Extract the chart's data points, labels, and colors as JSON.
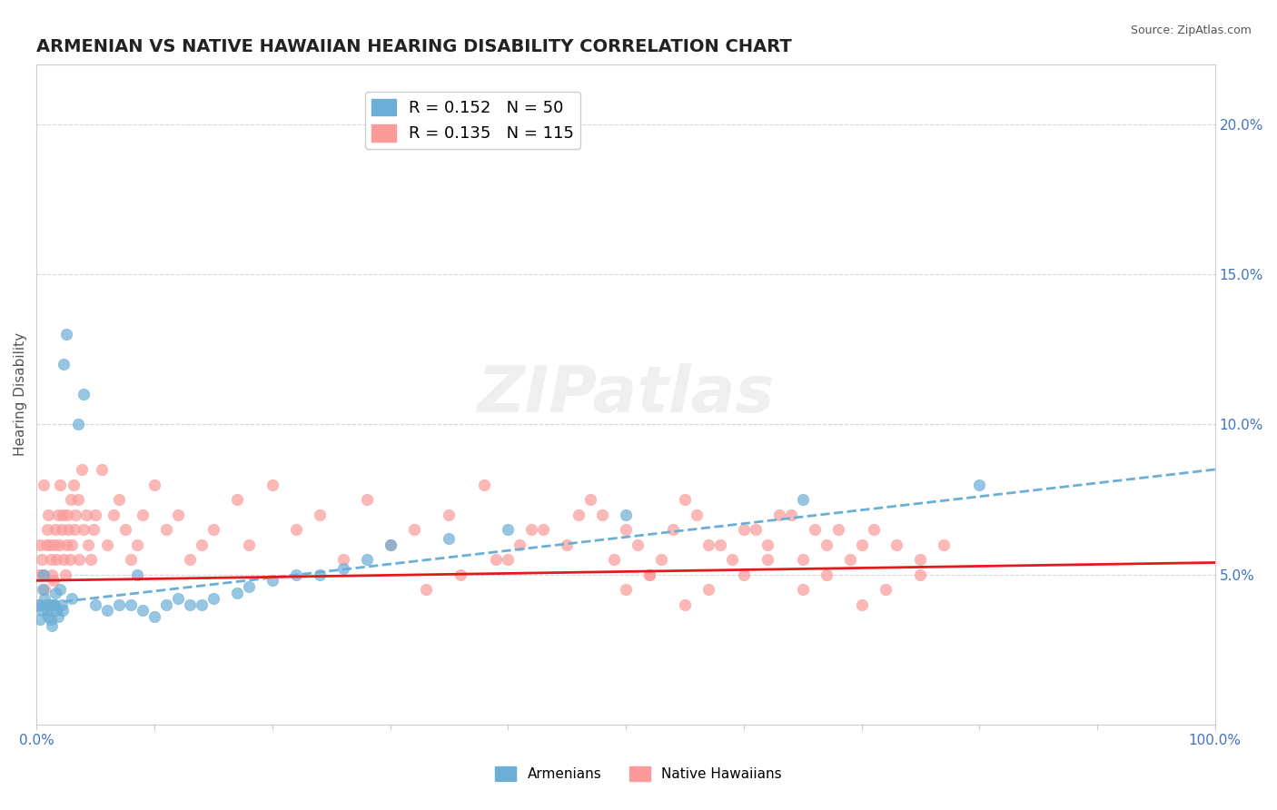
{
  "title": "ARMENIAN VS NATIVE HAWAIIAN HEARING DISABILITY CORRELATION CHART",
  "source": "Source: ZipAtlas.com",
  "xlabel": "",
  "ylabel": "Hearing Disability",
  "xlim": [
    0.0,
    1.0
  ],
  "ylim": [
    0.0,
    0.22
  ],
  "xticks": [
    0.0,
    0.1,
    0.2,
    0.3,
    0.4,
    0.5,
    0.6,
    0.7,
    0.8,
    0.9,
    1.0
  ],
  "xtick_labels": [
    "0.0%",
    "",
    "",
    "",
    "",
    "",
    "",
    "",
    "",
    "",
    "100.0%"
  ],
  "yticks": [
    0.05,
    0.1,
    0.15,
    0.2
  ],
  "ytick_labels": [
    "5.0%",
    "10.0%",
    "15.0%",
    "20.0%"
  ],
  "armenian_color": "#6baed6",
  "hawaiian_color": "#fb9a99",
  "armenian_line_color": "#6baed6",
  "hawaiian_line_color": "#e31a1c",
  "legend_armenian_R": "R = 0.152",
  "legend_armenian_N": "N = 50",
  "legend_hawaiian_R": "R = 0.135",
  "legend_hawaiian_N": "N = 115",
  "legend_label_armenian": "Armenians",
  "legend_label_hawaiian": "Native Hawaiians",
  "background_color": "#ffffff",
  "grid_color": "#cccccc",
  "watermark": "ZIPatlas",
  "title_fontsize": 14,
  "axis_label_fontsize": 11,
  "tick_fontsize": 11,
  "armenian_scatter": {
    "x": [
      0.002,
      0.003,
      0.004,
      0.005,
      0.006,
      0.007,
      0.008,
      0.009,
      0.01,
      0.011,
      0.012,
      0.013,
      0.014,
      0.015,
      0.016,
      0.017,
      0.018,
      0.02,
      0.021,
      0.022,
      0.023,
      0.025,
      0.03,
      0.035,
      0.04,
      0.05,
      0.06,
      0.07,
      0.08,
      0.085,
      0.09,
      0.1,
      0.11,
      0.12,
      0.13,
      0.14,
      0.15,
      0.17,
      0.18,
      0.2,
      0.22,
      0.24,
      0.26,
      0.28,
      0.3,
      0.35,
      0.4,
      0.5,
      0.65,
      0.8
    ],
    "y": [
      0.04,
      0.035,
      0.038,
      0.045,
      0.05,
      0.042,
      0.04,
      0.038,
      0.036,
      0.04,
      0.035,
      0.033,
      0.04,
      0.04,
      0.044,
      0.038,
      0.036,
      0.045,
      0.04,
      0.038,
      0.12,
      0.13,
      0.042,
      0.1,
      0.11,
      0.04,
      0.038,
      0.04,
      0.04,
      0.05,
      0.038,
      0.036,
      0.04,
      0.042,
      0.04,
      0.04,
      0.042,
      0.044,
      0.046,
      0.048,
      0.05,
      0.05,
      0.052,
      0.055,
      0.06,
      0.062,
      0.065,
      0.07,
      0.075,
      0.08
    ]
  },
  "hawaiian_scatter": {
    "x": [
      0.001,
      0.002,
      0.003,
      0.004,
      0.005,
      0.006,
      0.007,
      0.008,
      0.009,
      0.01,
      0.011,
      0.012,
      0.013,
      0.014,
      0.015,
      0.016,
      0.017,
      0.018,
      0.019,
      0.02,
      0.021,
      0.022,
      0.023,
      0.024,
      0.025,
      0.026,
      0.027,
      0.028,
      0.029,
      0.03,
      0.031,
      0.032,
      0.033,
      0.035,
      0.036,
      0.038,
      0.04,
      0.042,
      0.044,
      0.046,
      0.048,
      0.05,
      0.055,
      0.06,
      0.065,
      0.07,
      0.075,
      0.08,
      0.085,
      0.09,
      0.1,
      0.11,
      0.12,
      0.13,
      0.14,
      0.15,
      0.17,
      0.18,
      0.2,
      0.22,
      0.24,
      0.26,
      0.28,
      0.3,
      0.32,
      0.35,
      0.38,
      0.4,
      0.42,
      0.45,
      0.48,
      0.5,
      0.53,
      0.55,
      0.58,
      0.6,
      0.63,
      0.65,
      0.68,
      0.7,
      0.33,
      0.36,
      0.39,
      0.41,
      0.43,
      0.46,
      0.47,
      0.49,
      0.51,
      0.52,
      0.54,
      0.56,
      0.57,
      0.59,
      0.61,
      0.62,
      0.64,
      0.66,
      0.67,
      0.69,
      0.71,
      0.73,
      0.75,
      0.77,
      0.5,
      0.52,
      0.55,
      0.57,
      0.6,
      0.62,
      0.65,
      0.67,
      0.7,
      0.72,
      0.75
    ],
    "y": [
      0.04,
      0.05,
      0.06,
      0.055,
      0.05,
      0.08,
      0.045,
      0.06,
      0.065,
      0.07,
      0.06,
      0.055,
      0.05,
      0.048,
      0.06,
      0.065,
      0.055,
      0.07,
      0.06,
      0.08,
      0.065,
      0.07,
      0.055,
      0.05,
      0.06,
      0.07,
      0.065,
      0.055,
      0.075,
      0.06,
      0.08,
      0.065,
      0.07,
      0.075,
      0.055,
      0.085,
      0.065,
      0.07,
      0.06,
      0.055,
      0.065,
      0.07,
      0.085,
      0.06,
      0.07,
      0.075,
      0.065,
      0.055,
      0.06,
      0.07,
      0.08,
      0.065,
      0.07,
      0.055,
      0.06,
      0.065,
      0.075,
      0.06,
      0.08,
      0.065,
      0.07,
      0.055,
      0.075,
      0.06,
      0.065,
      0.07,
      0.08,
      0.055,
      0.065,
      0.06,
      0.07,
      0.065,
      0.055,
      0.075,
      0.06,
      0.065,
      0.07,
      0.055,
      0.065,
      0.06,
      0.045,
      0.05,
      0.055,
      0.06,
      0.065,
      0.07,
      0.075,
      0.055,
      0.06,
      0.05,
      0.065,
      0.07,
      0.06,
      0.055,
      0.065,
      0.06,
      0.07,
      0.065,
      0.06,
      0.055,
      0.065,
      0.06,
      0.055,
      0.06,
      0.045,
      0.05,
      0.04,
      0.045,
      0.05,
      0.055,
      0.045,
      0.05,
      0.04,
      0.045,
      0.05
    ]
  },
  "armenian_line": {
    "x0": 0.0,
    "y0": 0.04,
    "x1": 1.0,
    "y1": 0.085
  },
  "hawaiian_line": {
    "x0": 0.0,
    "y0": 0.048,
    "x1": 1.0,
    "y1": 0.054
  }
}
